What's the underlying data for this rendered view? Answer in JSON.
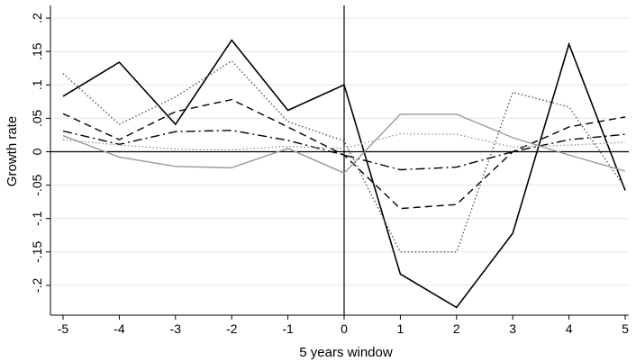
{
  "chart_data": {
    "type": "line",
    "title": "",
    "xlabel": "5 years window",
    "ylabel": "Growth rate",
    "xlim": [
      -5,
      5
    ],
    "ylim": [
      -0.235,
      0.2
    ],
    "grid": true,
    "legend": "none",
    "reference_lines": {
      "x": 0,
      "y": 0
    },
    "x": [
      -5,
      -4,
      -3,
      -2,
      -1,
      0,
      1,
      2,
      3,
      4,
      5
    ],
    "x_tick_labels": [
      "-5",
      "-4",
      "-3",
      "-2",
      "-1",
      "0",
      "1",
      "2",
      "3",
      "4",
      "5"
    ],
    "y_ticks": [
      0.2,
      0.15,
      0.1,
      0.05,
      0,
      -0.05,
      -0.1,
      -0.15,
      -0.2
    ],
    "y_tick_labels": [
      ".2",
      ".15",
      ".1",
      ".05",
      "0",
      "-.05",
      "-.1",
      "-.15",
      "-.2"
    ],
    "series": [
      {
        "style": "solid",
        "color": "#000000",
        "values": [
          0.083,
          0.134,
          0.041,
          0.167,
          0.062,
          0.1,
          -0.183,
          -0.233,
          -0.122,
          0.161,
          -0.058
        ]
      },
      {
        "style": "dotted",
        "color": "#555555",
        "values": [
          0.117,
          0.041,
          0.082,
          0.136,
          0.045,
          0.016,
          -0.15,
          -0.15,
          0.089,
          0.067,
          -0.054
        ]
      },
      {
        "style": "dashed",
        "color": "#000000",
        "values": [
          0.057,
          0.018,
          0.06,
          0.078,
          0.037,
          -0.005,
          -0.085,
          -0.079,
          0.0,
          0.037,
          0.052
        ]
      },
      {
        "style": "dashdot",
        "color": "#000000",
        "values": [
          0.031,
          0.011,
          0.03,
          0.032,
          0.017,
          -0.005,
          -0.027,
          -0.023,
          0.0,
          0.018,
          0.026
        ]
      },
      {
        "style": "solid",
        "color": "#999999",
        "values": [
          0.024,
          -0.008,
          -0.022,
          -0.024,
          0.005,
          -0.032,
          0.056,
          0.056,
          0.021,
          -0.005,
          -0.029
        ]
      },
      {
        "style": "dotted",
        "color": "#999999",
        "values": [
          0.018,
          0.01,
          0.004,
          0.003,
          0.008,
          0.005,
          0.027,
          0.026,
          0.007,
          0.01,
          0.014
        ]
      }
    ]
  }
}
